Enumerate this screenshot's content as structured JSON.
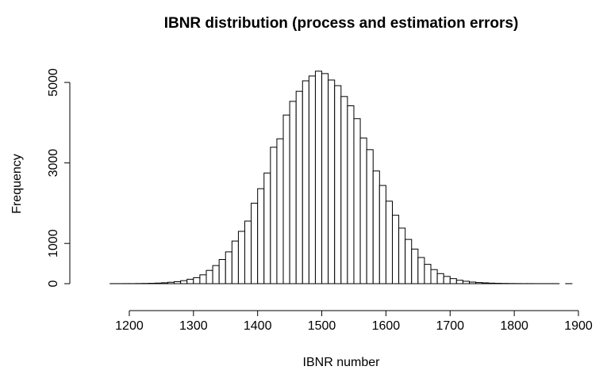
{
  "chart_data": {
    "type": "histogram",
    "title": "IBNR distribution (process and estimation errors)",
    "x_label": "IBNR number",
    "y_label": "Frequency",
    "bins": [
      1170,
      1180,
      1190,
      1200,
      1210,
      1220,
      1230,
      1240,
      1250,
      1260,
      1270,
      1280,
      1290,
      1300,
      1310,
      1320,
      1330,
      1340,
      1350,
      1360,
      1370,
      1380,
      1390,
      1400,
      1410,
      1420,
      1430,
      1440,
      1450,
      1460,
      1470,
      1480,
      1490,
      1500,
      1510,
      1520,
      1530,
      1540,
      1550,
      1560,
      1570,
      1580,
      1590,
      1600,
      1610,
      1620,
      1630,
      1640,
      1650,
      1660,
      1670,
      1680,
      1690,
      1700,
      1710,
      1720,
      1730,
      1740,
      1750,
      1760,
      1770,
      1780,
      1790,
      1800,
      1810,
      1820,
      1830,
      1840,
      1850,
      1860,
      1870,
      1880,
      1890
    ],
    "values": [
      1,
      1,
      2,
      2,
      4,
      6,
      9,
      14,
      22,
      35,
      50,
      75,
      110,
      150,
      220,
      330,
      450,
      600,
      790,
      1060,
      1300,
      1555,
      2000,
      2360,
      2750,
      3390,
      3600,
      4190,
      4530,
      4780,
      5040,
      5160,
      5280,
      5220,
      5060,
      4920,
      4650,
      4420,
      4100,
      3620,
      3330,
      2800,
      2440,
      2050,
      1700,
      1380,
      1100,
      860,
      650,
      480,
      350,
      250,
      180,
      125,
      85,
      60,
      40,
      28,
      20,
      13,
      9,
      6,
      4,
      3,
      2,
      2,
      1,
      1,
      1,
      1,
      0,
      1
    ],
    "color": "#ffffff",
    "xlim": [
      1170,
      1890
    ],
    "ylim": [
      0,
      5300
    ],
    "xticks": [
      1200,
      1300,
      1400,
      1500,
      1600,
      1700,
      1800,
      1900
    ],
    "yticks": [
      0,
      1000,
      3000,
      5000
    ]
  }
}
